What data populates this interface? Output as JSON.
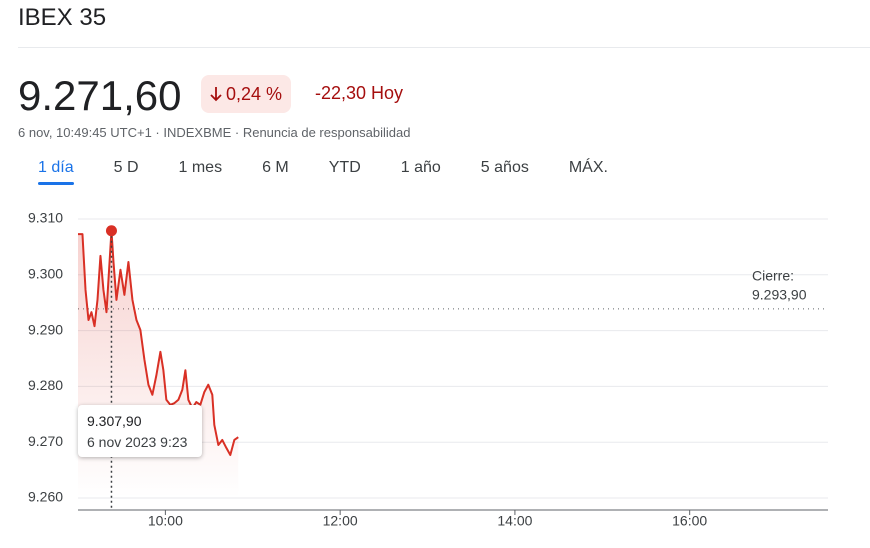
{
  "title": "IBEX 35",
  "price": "9.271,60",
  "change_pct": "0,24 %",
  "change_abs": "-22,30 Hoy",
  "meta": "6 nov, 10:49:45 UTC+1 · INDEXBME · Renuncia de responsabilidad",
  "tabs": [
    "1 día",
    "5 D",
    "1 mes",
    "6 M",
    "YTD",
    "1 año",
    "5 años",
    "MÁX."
  ],
  "chart_data": {
    "type": "line",
    "series": [
      {
        "color": "#d93025",
        "x": [
          9.0,
          9.051,
          9.086,
          9.12,
          9.154,
          9.189,
          9.223,
          9.257,
          9.291,
          9.326,
          9.383,
          9.406,
          9.44,
          9.486,
          9.531,
          9.577,
          9.623,
          9.669,
          9.714,
          9.76,
          9.806,
          9.851,
          9.897,
          9.943,
          9.977,
          10.011,
          10.057,
          10.103,
          10.149,
          10.194,
          10.229,
          10.263,
          10.309,
          10.354,
          10.4,
          10.446,
          10.491,
          10.537,
          10.56,
          10.606,
          10.651,
          10.697,
          10.743,
          10.789,
          10.834
        ],
        "values": [
          9307.3,
          9307.3,
          9297.3,
          9291.9,
          9293.3,
          9290.8,
          9295.5,
          9303.4,
          9297.3,
          9293.3,
          9307.9,
          9302.3,
          9295.5,
          9300.9,
          9296.4,
          9302.3,
          9295.5,
          9291.9,
          9290.1,
          9284.8,
          9280.3,
          9278.5,
          9282.0,
          9286.2,
          9282.9,
          9277.6,
          9276.7,
          9277.0,
          9277.6,
          9279.4,
          9282.9,
          9277.6,
          9276.1,
          9277.2,
          9276.7,
          9279.0,
          9280.3,
          9278.5,
          9273.1,
          9269.5,
          9270.4,
          9269.0,
          9267.7,
          9270.4,
          9270.9
        ]
      }
    ],
    "xlim": [
      9,
      17.583
    ],
    "xticks": [
      {
        "value": 10,
        "label": "10:00"
      },
      {
        "value": 12,
        "label": "12:00"
      },
      {
        "value": 14,
        "label": "14:00"
      },
      {
        "value": 16,
        "label": "16:00"
      }
    ],
    "ylim": [
      9260,
      9310
    ],
    "yticks": [
      {
        "value": 9260,
        "label": "9.260"
      },
      {
        "value": 9270,
        "label": "9.270"
      },
      {
        "value": 9280,
        "label": "9.280"
      },
      {
        "value": 9290,
        "label": "9.290"
      },
      {
        "value": 9300,
        "label": "9.300"
      },
      {
        "value": 9310,
        "label": "9.310"
      }
    ],
    "grid": true,
    "reference_line": {
      "title": "Cierre:",
      "value": 9293.9,
      "label": "9.293,90"
    },
    "tooltip": {
      "index": 10,
      "value_label": "9.307,90",
      "date_label": "6 nov 2023 9:23"
    }
  }
}
